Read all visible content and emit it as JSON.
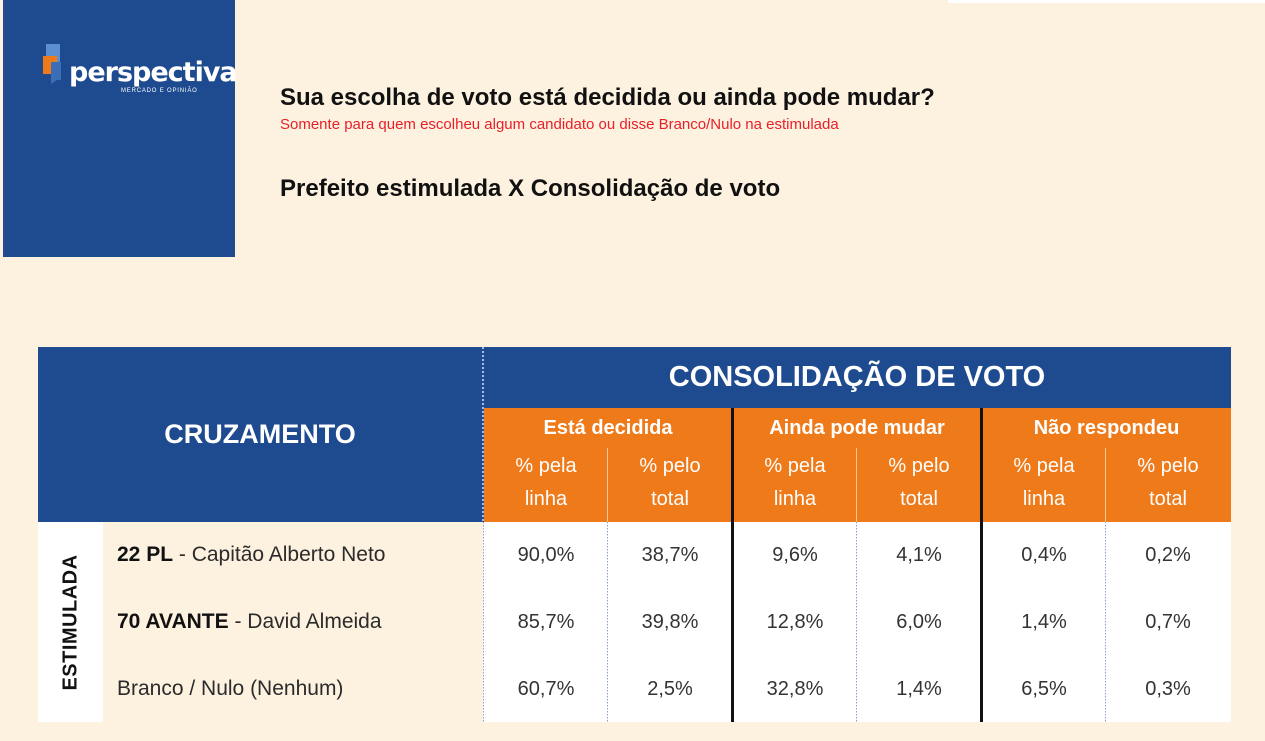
{
  "brand": {
    "logo_text": "perspectiva",
    "tagline": "MERCADO E OPINIÃO",
    "colors": {
      "navy": "#1e4b8f",
      "orange": "#ef7a1a",
      "red_note": "#e8202a"
    }
  },
  "header": {
    "title": "Sua escolha de voto está decidida ou ainda pode mudar?",
    "subtitle": "Somente para quem escolheu algum candidato ou disse Branco/Nulo na estimulada",
    "section_title": "Prefeito estimulada X Consolidação de voto"
  },
  "table": {
    "left_header": "CRUZAMENTO",
    "top_header": "CONSOLIDAÇÃO DE VOTO",
    "side_label": "ESTIMULADA",
    "groups": [
      {
        "label": "Está decidida"
      },
      {
        "label": "Ainda pode mudar"
      },
      {
        "label": "Não respondeu"
      }
    ],
    "subcolumns": [
      {
        "line1": "% pela",
        "line2": "linha"
      },
      {
        "line1": "% pelo",
        "line2": "total"
      },
      {
        "line1": "% pela",
        "line2": "linha"
      },
      {
        "line1": "% pelo",
        "line2": "total"
      },
      {
        "line1": "% pela",
        "line2": "linha"
      },
      {
        "line1": "% pelo",
        "line2": "total"
      }
    ],
    "rows": [
      {
        "code": "22 PL",
        "name": " - Capitão Alberto Neto",
        "values": [
          "90,0%",
          "38,7%",
          "9,6%",
          "4,1%",
          "0,4%",
          "0,2%"
        ]
      },
      {
        "code": "70 AVANTE",
        "name": " - David Almeida",
        "values": [
          "85,7%",
          "39,8%",
          "12,8%",
          "6,0%",
          "1,4%",
          "0,7%"
        ]
      },
      {
        "code": "",
        "name": "Branco / Nulo (Nenhum)",
        "values": [
          "60,7%",
          "2,5%",
          "32,8%",
          "1,4%",
          "6,5%",
          "0,3%"
        ]
      }
    ]
  }
}
